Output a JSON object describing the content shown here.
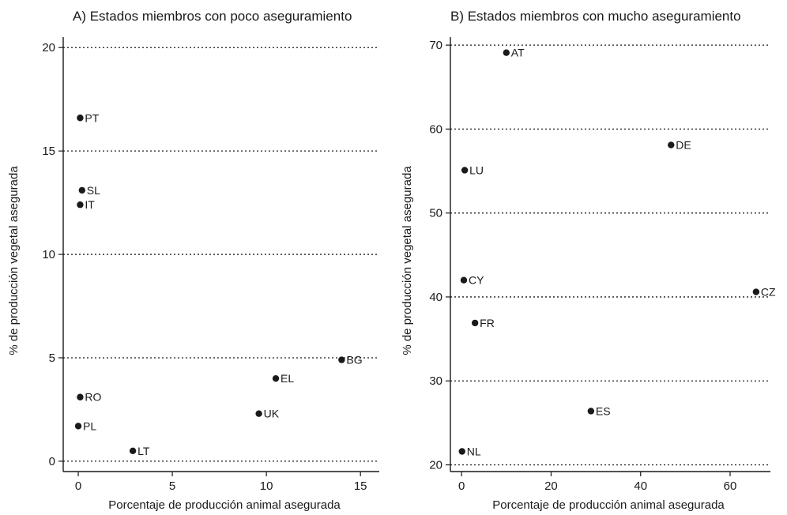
{
  "chart_data": [
    {
      "type": "scatter",
      "title": "A) Estados miembros con poco aseguramiento",
      "xlabel": "Porcentaje de producción animal asegurada",
      "ylabel": "% de producción vegetal asegurada",
      "xlim": [
        -0.8,
        16
      ],
      "ylim": [
        -0.5,
        20.2
      ],
      "xticks": [
        0,
        5,
        10,
        15
      ],
      "yticks": [
        0,
        5,
        10,
        15,
        20
      ],
      "grid": "horizontal dotted",
      "points": [
        {
          "label": "PT",
          "x": 0.1,
          "y": 16.6
        },
        {
          "label": "SL",
          "x": 0.2,
          "y": 13.1
        },
        {
          "label": "IT",
          "x": 0.1,
          "y": 12.4
        },
        {
          "label": "BG",
          "x": 14.0,
          "y": 4.9
        },
        {
          "label": "EL",
          "x": 10.5,
          "y": 4.0
        },
        {
          "label": "RO",
          "x": 0.1,
          "y": 3.1
        },
        {
          "label": "UK",
          "x": 9.6,
          "y": 2.3
        },
        {
          "label": "PL",
          "x": 0.0,
          "y": 1.7
        },
        {
          "label": "LT",
          "x": 2.9,
          "y": 0.5
        }
      ]
    },
    {
      "type": "scatter",
      "title": "B) Estados miembros con mucho aseguramiento",
      "xlabel": "Porcentaje de producción animal asegurada",
      "ylabel": "% de producción vegetal asegurada",
      "xlim": [
        -2.5,
        69
      ],
      "ylim": [
        19.2,
        70.2
      ],
      "xticks": [
        0,
        20,
        40,
        60
      ],
      "yticks": [
        20,
        30,
        40,
        50,
        60,
        70
      ],
      "grid": "horizontal dotted",
      "points": [
        {
          "label": "AT",
          "x": 10.0,
          "y": 69.1
        },
        {
          "label": "DE",
          "x": 46.8,
          "y": 58.1
        },
        {
          "label": "LU",
          "x": 0.7,
          "y": 55.1
        },
        {
          "label": "CY",
          "x": 0.5,
          "y": 42.0
        },
        {
          "label": "CZ",
          "x": 65.8,
          "y": 40.6
        },
        {
          "label": "FR",
          "x": 3.0,
          "y": 36.9
        },
        {
          "label": "ES",
          "x": 28.9,
          "y": 26.4
        },
        {
          "label": "NL",
          "x": 0.1,
          "y": 21.6
        }
      ]
    }
  ]
}
